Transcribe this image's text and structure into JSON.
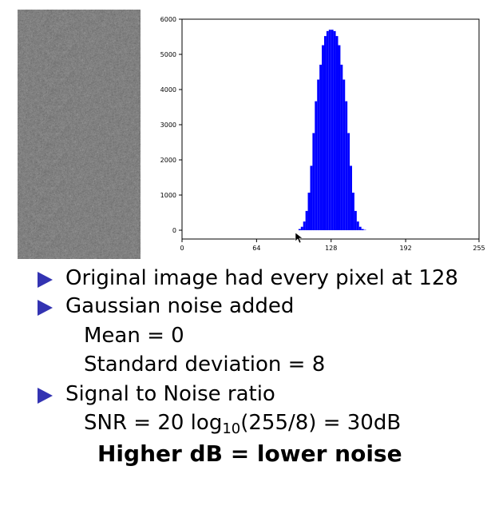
{
  "image": {
    "description_name": "gaussian-noise-image",
    "base_gray": 128,
    "noise_std": 8
  },
  "chart_data": {
    "type": "bar",
    "title": "",
    "xlabel": "",
    "ylabel": "",
    "xlim": [
      0,
      255
    ],
    "ylim": [
      -250,
      6000
    ],
    "xticks": [
      "0",
      "64",
      "128",
      "192",
      "255"
    ],
    "xtick_values": [
      0,
      64,
      128,
      192,
      255
    ],
    "yticks": [
      "0",
      "1000",
      "2000",
      "3000",
      "4000",
      "5000",
      "6000"
    ],
    "ytick_values": [
      0,
      1000,
      2000,
      3000,
      4000,
      5000,
      6000
    ],
    "bar_color": "#0000ff",
    "mean": 128,
    "std": 8,
    "peak_count": 5700,
    "x": [
      100,
      102,
      104,
      106,
      108,
      110,
      112,
      114,
      116,
      118,
      120,
      122,
      124,
      126,
      128,
      130,
      132,
      134,
      136,
      138,
      140,
      142,
      144,
      146,
      148,
      150,
      152,
      154,
      156
    ],
    "values": [
      34,
      98,
      247,
      548,
      1068,
      1831,
      2762,
      3667,
      4283,
      4706,
      5260,
      5520,
      5662,
      5700,
      5700,
      5662,
      5520,
      5260,
      4706,
      4283,
      3667,
      2762,
      1831,
      1068,
      548,
      247,
      98,
      34,
      10
    ]
  },
  "bullets": {
    "line1": "Original image had every pixel at 128",
    "line2": "Gaussian noise added",
    "line3": "Mean = 0",
    "line4": "Standard deviation = 8",
    "line5": "Signal to Noise ratio",
    "line6_prefix": "SNR = 20 log",
    "line6_sub": "10",
    "line6_suffix": "(255/8) = 30dB",
    "line7": "Higher dB = lower noise"
  },
  "colors": {
    "bullet": "#3333b2",
    "bars": "#0000ff"
  }
}
